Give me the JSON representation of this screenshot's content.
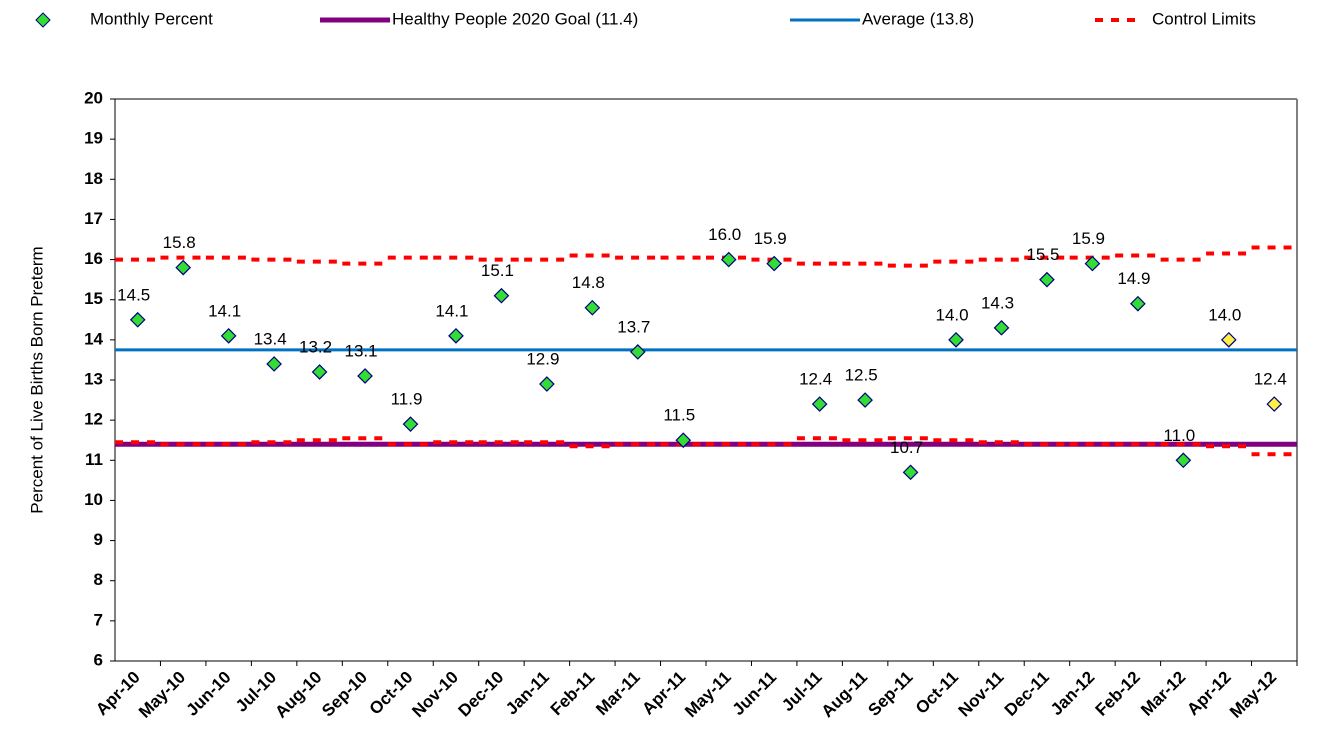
{
  "chart_data": {
    "type": "scatter",
    "y_label": "Percent of Live Births Born Preterm",
    "categories": [
      "Apr-10",
      "May-10",
      "Jun-10",
      "Jul-10",
      "Aug-10",
      "Sep-10",
      "Oct-10",
      "Nov-10",
      "Dec-10",
      "Jan-11",
      "Feb-11",
      "Mar-11",
      "Apr-11",
      "May-11",
      "Jun-11",
      "Jul-11",
      "Aug-11",
      "Sep-11",
      "Oct-11",
      "Nov-11",
      "Dec-11",
      "Jan-12",
      "Feb-12",
      "Mar-12",
      "Apr-12",
      "May-12"
    ],
    "series": [
      {
        "name": "Monthly Percent",
        "color": "#00cc00",
        "point_colors": [
          "#33dd33",
          "#33dd33",
          "#33dd33",
          "#33dd33",
          "#33dd33",
          "#33dd33",
          "#33dd33",
          "#33dd33",
          "#33dd33",
          "#33dd33",
          "#33dd33",
          "#33dd33",
          "#33dd33",
          "#33dd33",
          "#33dd33",
          "#33dd33",
          "#33dd33",
          "#33dd33",
          "#33dd33",
          "#33dd33",
          "#33dd33",
          "#33dd33",
          "#33dd33",
          "#33dd33",
          "#ffee44",
          "#ffee44"
        ],
        "values": [
          14.5,
          15.8,
          14.1,
          13.4,
          13.2,
          13.1,
          11.9,
          14.1,
          15.1,
          12.9,
          14.8,
          13.7,
          11.5,
          16.0,
          15.9,
          12.4,
          12.5,
          10.7,
          14.0,
          14.3,
          15.5,
          15.9,
          14.9,
          11.0,
          14.0,
          12.4
        ],
        "value_labels": [
          "14.5",
          "15.8",
          "14.1",
          "13.4",
          "13.2",
          "13.1",
          "11.9",
          "14.1",
          "15.1",
          "12.9",
          "14.8",
          "13.7",
          "11.5",
          "16.0",
          "15.9",
          "12.4",
          "12.5",
          "10.7",
          "14.0",
          "14.3",
          "15.5",
          "15.9",
          "14.9",
          "11.0",
          "14.0",
          "12.4"
        ]
      },
      {
        "name": "Healthy People 2020 Goal (11.4)",
        "color": "#800080",
        "value": 11.4
      },
      {
        "name": "Average (13.8)",
        "color": "#0070c0",
        "value": 13.75
      },
      {
        "name": "Control Limits",
        "color": "#ff0000",
        "upper": [
          16.0,
          16.05,
          16.05,
          16.0,
          15.95,
          15.9,
          16.05,
          16.05,
          16.0,
          16.0,
          16.1,
          16.05,
          16.05,
          16.05,
          16.0,
          15.9,
          15.9,
          15.85,
          15.95,
          16.0,
          16.05,
          16.05,
          16.1,
          16.0,
          16.15,
          16.3
        ],
        "lower": [
          11.45,
          11.4,
          11.4,
          11.45,
          11.5,
          11.55,
          11.4,
          11.45,
          11.45,
          11.45,
          11.35,
          11.4,
          11.4,
          11.4,
          11.4,
          11.55,
          11.5,
          11.55,
          11.5,
          11.45,
          11.4,
          11.4,
          11.4,
          11.4,
          11.35,
          11.15
        ]
      }
    ],
    "ylim": [
      6,
      20
    ],
    "yticks": [
      6,
      7,
      8,
      9,
      10,
      11,
      12,
      13,
      14,
      15,
      16,
      17,
      18,
      19,
      20
    ]
  }
}
